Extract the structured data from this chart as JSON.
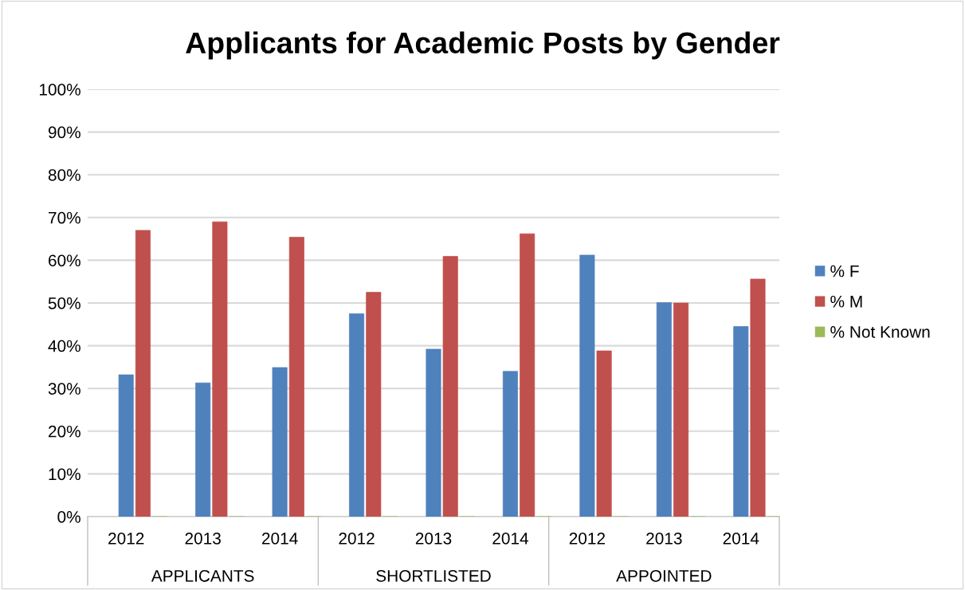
{
  "chart_data": {
    "type": "bar",
    "title": "Applicants for Academic Posts by Gender",
    "categories": [
      "2012",
      "2013",
      "2014",
      "2012",
      "2013",
      "2014",
      "2012",
      "2013",
      "2014"
    ],
    "annotations": [
      "APPLICANTS",
      "SHORTLISTED",
      "APPOINTED"
    ],
    "series": [
      {
        "name": "% F",
        "color": "#4f81bd",
        "values": [
          33.2,
          31.3,
          34.9,
          47.5,
          39.2,
          34.0,
          61.2,
          50.1,
          44.5
        ]
      },
      {
        "name": "% M",
        "color": "#c0504d",
        "values": [
          67.0,
          69.0,
          65.4,
          52.5,
          60.9,
          66.2,
          38.8,
          50.0,
          55.6
        ]
      },
      {
        "name": "% Not Known",
        "color": "#9bbb59",
        "values": [
          0,
          0,
          0,
          0,
          0,
          0,
          0,
          0,
          0
        ]
      }
    ],
    "ylim": [
      0,
      100
    ],
    "yticks": [
      {
        "value": 0,
        "label": "0%"
      },
      {
        "value": 10,
        "label": "10%"
      },
      {
        "value": 20,
        "label": "20%"
      },
      {
        "value": 30,
        "label": "30%"
      },
      {
        "value": 40,
        "label": "40%"
      },
      {
        "value": 50,
        "label": "50%"
      },
      {
        "value": 60,
        "label": "60%"
      },
      {
        "value": 70,
        "label": "70%"
      },
      {
        "value": 80,
        "label": "80%"
      },
      {
        "value": 90,
        "label": "90%"
      },
      {
        "value": 100,
        "label": "100%"
      }
    ],
    "grid": "y",
    "legend": "right"
  }
}
